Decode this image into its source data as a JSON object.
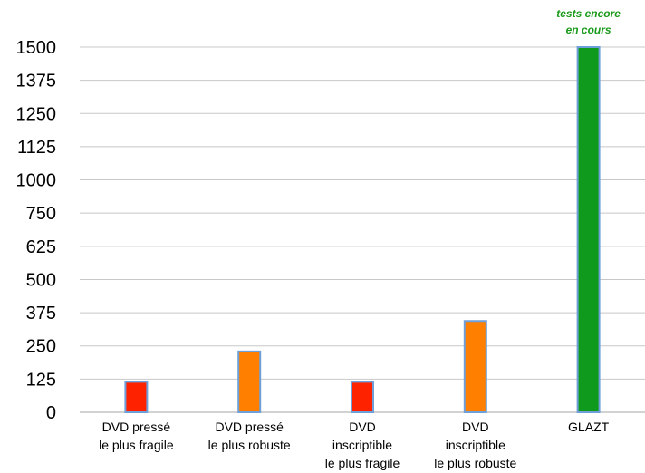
{
  "chart_data": {
    "type": "bar",
    "categories": [
      [
        "DVD pressé",
        "le plus fragile"
      ],
      [
        "DVD pressé",
        "le plus robuste"
      ],
      [
        "DVD",
        "inscriptible",
        "le plus fragile"
      ],
      [
        "DVD",
        "inscriptible",
        "le plus robuste"
      ],
      [
        "GLAZT"
      ]
    ],
    "values": [
      125,
      250,
      125,
      375,
      1500
    ],
    "bar_colors": [
      "#ff2200",
      "#ff8000",
      "#ff2200",
      "#ff8000",
      "#0f9a1e"
    ],
    "bar_border_color": "#6f9fd8",
    "ytick_labels": [
      "0",
      "125",
      "250",
      "375",
      "500",
      "625",
      "750",
      "1000",
      "1125",
      "1250",
      "1375",
      "1500"
    ],
    "ylim": [
      0,
      1500
    ],
    "grid": true,
    "annotation": {
      "lines": [
        "tests  encore",
        "en cours"
      ],
      "category_index": 4,
      "color": "#1a9a1a"
    }
  }
}
